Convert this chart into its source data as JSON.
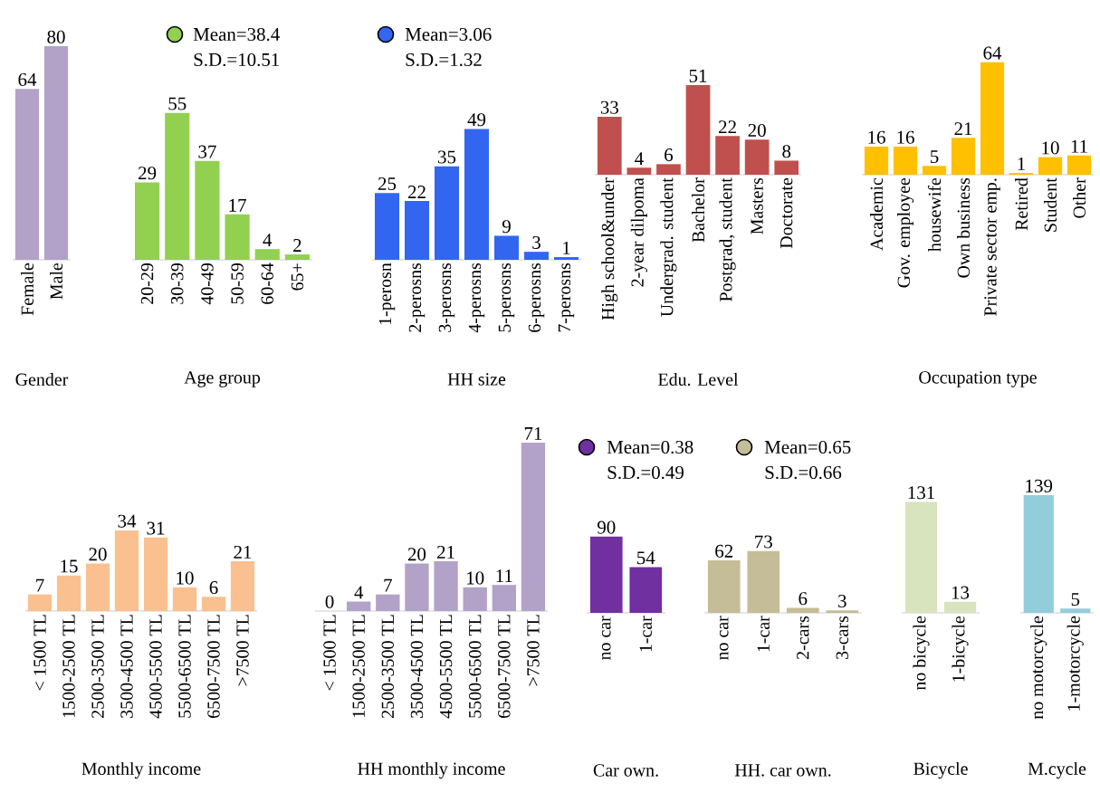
{
  "chart_data": [
    {
      "type": "bar",
      "xlabel": "Gender",
      "categories": [
        "Female",
        "Male"
      ],
      "values": [
        64,
        80
      ],
      "color": "#b3a2c7",
      "data_labels": true
    },
    {
      "type": "bar",
      "xlabel": "Age group",
      "categories": [
        "20-29",
        "30-39",
        "40-49",
        "50-59",
        "60-64",
        "65+"
      ],
      "values": [
        29,
        55,
        37,
        17,
        4,
        2
      ],
      "color": "#92d050",
      "data_labels": true,
      "annotations": [
        "Mean=38.4",
        "S.D.=10.51"
      ]
    },
    {
      "type": "bar",
      "xlabel": "HH size",
      "categories": [
        "1-perosn",
        "2-perosns",
        "3-perosns",
        "4-perosns",
        "5-perosns",
        "6-perosns",
        "7-perosns"
      ],
      "values": [
        25,
        22,
        35,
        49,
        9,
        3,
        1
      ],
      "color": "#3366f0",
      "data_labels": true,
      "annotations": [
        "Mean=3.06",
        "S.D.=1.32"
      ]
    },
    {
      "type": "bar",
      "xlabel": "Edu. Level",
      "categories": [
        "High school&under",
        "2-year dilpoma",
        "Undergrad. student",
        "Bachelor",
        "Postgrad, student",
        "Masters",
        "Doctorate"
      ],
      "values": [
        33,
        4,
        6,
        51,
        22,
        20,
        8
      ],
      "color": "#c0504d",
      "data_labels": true
    },
    {
      "type": "bar",
      "xlabel": "Occupation type",
      "categories": [
        "Academic",
        "Gov. employee",
        "housewife",
        "Own business",
        "Private sector emp.",
        "Retired",
        "Student",
        "Other"
      ],
      "values": [
        16,
        16,
        5,
        21,
        64,
        1,
        10,
        11
      ],
      "color": "#ffc000",
      "data_labels": true
    },
    {
      "type": "bar",
      "xlabel": "Monthly income",
      "categories": [
        "< 1500 TL",
        "1500-2500 TL",
        "2500-3500 TL",
        "3500-4500 TL",
        "4500-5500 TL",
        "5500-6500 TL",
        "6500-7500 TL",
        ">7500 TL"
      ],
      "values": [
        7,
        15,
        20,
        34,
        31,
        10,
        6,
        21
      ],
      "color": "#fac090",
      "data_labels": true
    },
    {
      "type": "bar",
      "xlabel": "HH monthly income",
      "categories": [
        "< 1500 TL",
        "1500-2500 TL",
        "2500-3500 TL",
        "3500-4500 TL",
        "4500-5500 TL",
        "5500-6500 TL",
        "6500-7500 TL",
        ">7500 TL"
      ],
      "values": [
        0,
        4,
        7,
        20,
        21,
        10,
        11,
        71
      ],
      "color": "#b3a2c7",
      "data_labels": true
    },
    {
      "type": "bar",
      "xlabel": "Car own.",
      "categories": [
        "no car",
        "1-car"
      ],
      "values": [
        90,
        54
      ],
      "color": "#7030a0",
      "data_labels": true,
      "annotations": [
        "Mean=0.38",
        "S.D.=0.49"
      ]
    },
    {
      "type": "bar",
      "xlabel": "HH. car own.",
      "categories": [
        "no car",
        "1-car",
        "2-cars",
        "3-cars"
      ],
      "values": [
        62,
        73,
        6,
        3
      ],
      "color": "#c4bd97",
      "data_labels": true,
      "annotations": [
        "Mean=0.65",
        "S.D.=0.66"
      ]
    },
    {
      "type": "bar",
      "xlabel": "Bicycle",
      "categories": [
        "no bicycle",
        "1-bicycle"
      ],
      "values": [
        131,
        13
      ],
      "color": "#d7e4bd",
      "data_labels": true
    },
    {
      "type": "bar",
      "xlabel": "M.cycle",
      "categories": [
        "no motorcycle",
        "1-motorcycle"
      ],
      "values": [
        139,
        5
      ],
      "color": "#92cddc",
      "data_labels": true
    }
  ]
}
